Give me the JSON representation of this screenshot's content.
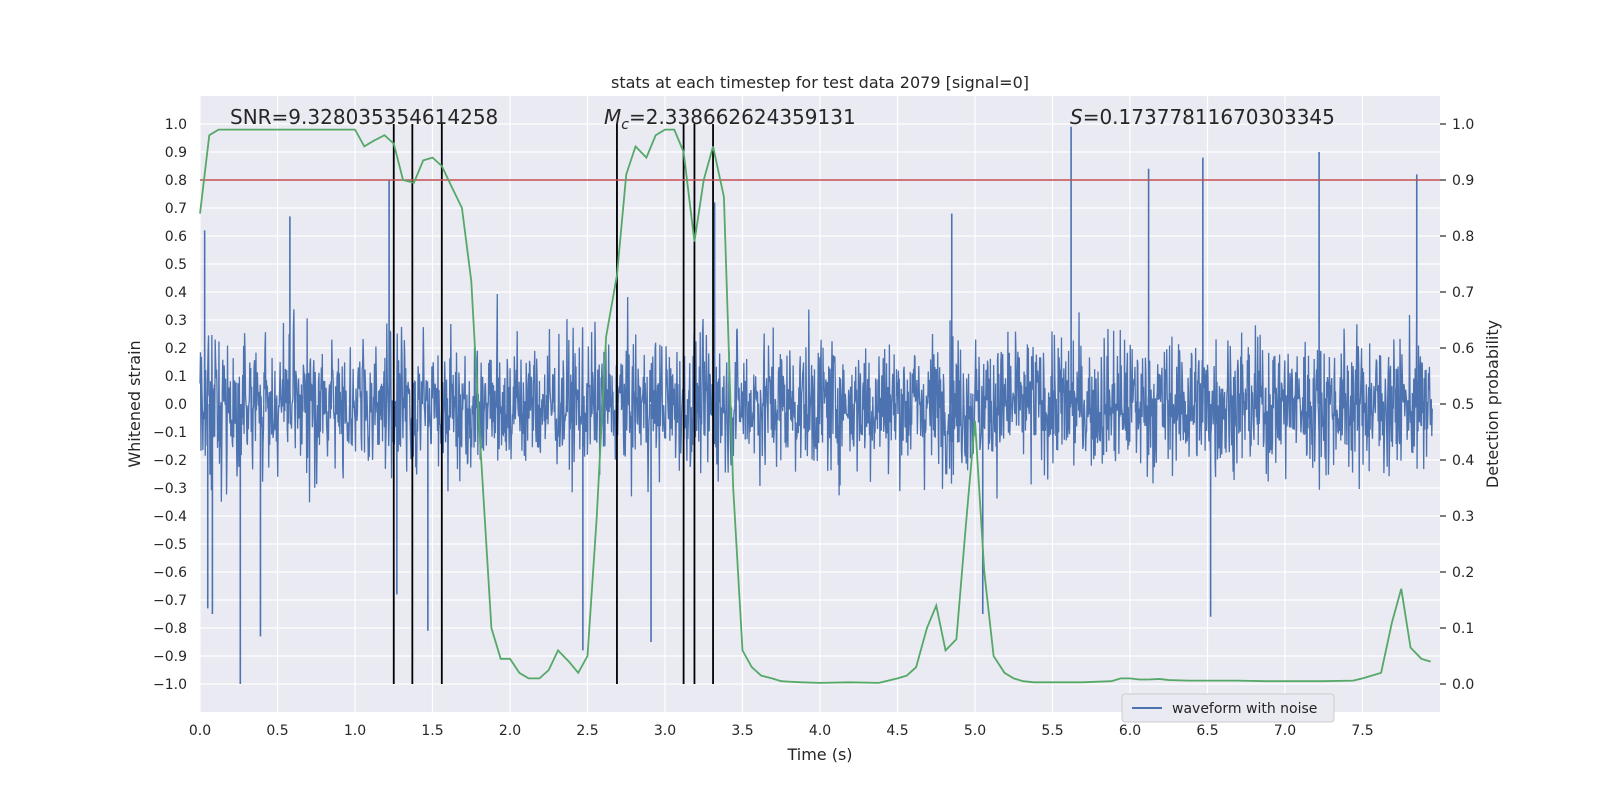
{
  "chart_data": {
    "type": "line",
    "title": "stats at each timestep for test data 2079 [signal=0]",
    "xlabel": "Time (s)",
    "ylabel": "Whitened strain",
    "y2label": "Detection probability",
    "xlim": [
      0.0,
      8.0
    ],
    "ylim": [
      -1.1,
      1.1
    ],
    "y2lim": [
      -0.05,
      1.05
    ],
    "xticks": [
      "0.0",
      "0.5",
      "1.0",
      "1.5",
      "2.0",
      "2.5",
      "3.0",
      "3.5",
      "4.0",
      "4.5",
      "5.0",
      "5.5",
      "6.0",
      "6.5",
      "7.0",
      "7.5"
    ],
    "yticks": [
      "-1.0",
      "-0.9",
      "-0.8",
      "-0.7",
      "-0.6",
      "-0.5",
      "-0.4",
      "-0.3",
      "-0.2",
      "-0.1",
      "0.0",
      "0.1",
      "0.2",
      "0.3",
      "0.4",
      "0.5",
      "0.6",
      "0.7",
      "0.8",
      "0.9",
      "1.0"
    ],
    "y2ticks": [
      "0.0",
      "0.1",
      "0.2",
      "0.3",
      "0.4",
      "0.5",
      "0.6",
      "0.7",
      "0.8",
      "0.9",
      "1.0"
    ],
    "grid": true,
    "legend": {
      "placement": "lower-right",
      "entries": [
        "waveform with noise"
      ]
    },
    "annotations": {
      "snr": "SNR=9.328035354614258",
      "mc_symbol": "M",
      "mc_sub": "c",
      "mc_value": "=2.338662624359131",
      "s_symbol": "S",
      "s_value": "=0.17377811670303345"
    },
    "threshold": 0.9,
    "vlines": [
      1.25,
      1.37,
      1.56,
      2.69,
      3.12,
      3.19,
      3.31
    ],
    "waveform": {
      "name": "waveform with noise",
      "typical_amplitude": 0.4,
      "spikes": [
        {
          "x": 0.03,
          "y": 0.62
        },
        {
          "x": 0.05,
          "y": -0.73
        },
        {
          "x": 0.08,
          "y": -0.75
        },
        {
          "x": 0.26,
          "y": -1.0
        },
        {
          "x": 0.39,
          "y": -0.83
        },
        {
          "x": 0.58,
          "y": 0.67
        },
        {
          "x": 1.22,
          "y": 0.8
        },
        {
          "x": 1.27,
          "y": -0.68
        },
        {
          "x": 1.47,
          "y": -0.81
        },
        {
          "x": 2.47,
          "y": -0.88
        },
        {
          "x": 2.69,
          "y": 0.8
        },
        {
          "x": 2.91,
          "y": -0.85
        },
        {
          "x": 3.32,
          "y": 0.72
        },
        {
          "x": 4.85,
          "y": 0.68
        },
        {
          "x": 5.05,
          "y": -0.75
        },
        {
          "x": 5.62,
          "y": 0.99
        },
        {
          "x": 6.12,
          "y": 0.84
        },
        {
          "x": 6.47,
          "y": 0.88
        },
        {
          "x": 6.52,
          "y": -0.76
        },
        {
          "x": 7.22,
          "y": 0.9
        },
        {
          "x": 7.85,
          "y": 0.82
        }
      ]
    },
    "probability": {
      "x": [
        0.0,
        0.06,
        0.12,
        0.2,
        0.3,
        0.4,
        0.5,
        0.6,
        0.7,
        0.8,
        0.9,
        1.0,
        1.06,
        1.12,
        1.19,
        1.25,
        1.31,
        1.38,
        1.44,
        1.5,
        1.56,
        1.62,
        1.69,
        1.75,
        1.81,
        1.88,
        1.94,
        2.0,
        2.06,
        2.12,
        2.19,
        2.25,
        2.31,
        2.38,
        2.44,
        2.5,
        2.56,
        2.62,
        2.69,
        2.75,
        2.81,
        2.88,
        2.94,
        3.0,
        3.06,
        3.12,
        3.19,
        3.25,
        3.31,
        3.38,
        3.44,
        3.5,
        3.56,
        3.62,
        3.69,
        3.75,
        3.81,
        3.88,
        4.0,
        4.19,
        4.38,
        4.5,
        4.56,
        4.62,
        4.69,
        4.75,
        4.81,
        4.88,
        4.94,
        5.0,
        5.06,
        5.12,
        5.19,
        5.25,
        5.31,
        5.38,
        5.5,
        5.69,
        5.88,
        5.94,
        6.0,
        6.06,
        6.12,
        6.19,
        6.25,
        6.38,
        6.5,
        6.69,
        6.88,
        7.06,
        7.25,
        7.44,
        7.5,
        7.56,
        7.62,
        7.69,
        7.75,
        7.81,
        7.88,
        7.94
      ],
      "y": [
        0.84,
        0.98,
        0.99,
        0.99,
        0.99,
        0.99,
        0.99,
        0.99,
        0.99,
        0.99,
        0.99,
        0.99,
        0.96,
        0.97,
        0.98,
        0.965,
        0.9,
        0.895,
        0.935,
        0.94,
        0.925,
        0.89,
        0.85,
        0.72,
        0.42,
        0.1,
        0.045,
        0.045,
        0.02,
        0.01,
        0.01,
        0.025,
        0.06,
        0.04,
        0.02,
        0.05,
        0.3,
        0.62,
        0.73,
        0.91,
        0.96,
        0.94,
        0.98,
        0.99,
        0.99,
        0.95,
        0.79,
        0.9,
        0.96,
        0.87,
        0.35,
        0.06,
        0.03,
        0.015,
        0.01,
        0.005,
        0.004,
        0.003,
        0.002,
        0.003,
        0.002,
        0.01,
        0.015,
        0.03,
        0.1,
        0.14,
        0.06,
        0.08,
        0.28,
        0.47,
        0.2,
        0.05,
        0.02,
        0.01,
        0.005,
        0.003,
        0.003,
        0.003,
        0.005,
        0.01,
        0.01,
        0.008,
        0.008,
        0.009,
        0.007,
        0.006,
        0.006,
        0.006,
        0.005,
        0.005,
        0.005,
        0.006,
        0.01,
        0.015,
        0.02,
        0.11,
        0.17,
        0.065,
        0.045,
        0.04
      ]
    }
  }
}
